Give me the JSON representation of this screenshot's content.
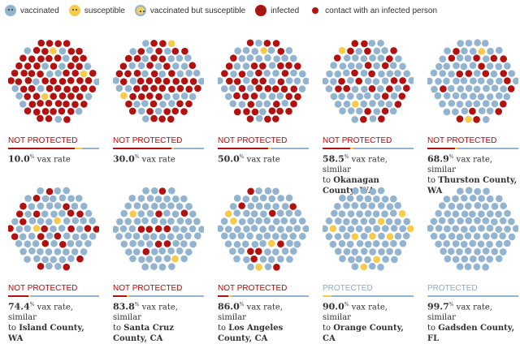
{
  "legend": [
    {
      "label": "vaccinated",
      "color": "#92b4d0"
    },
    {
      "label": "susceptible",
      "color": "#f6cb4c"
    },
    {
      "label": "vaccinated but susceptible",
      "color": "#f0cf6a"
    },
    {
      "label": "infected",
      "color": "#b3110f"
    },
    {
      "label": "contact with an infected person",
      "color": "#b3110f"
    }
  ],
  "colors": {
    "vaccinated": "#92b4d0",
    "susceptible": "#f6cb4c",
    "infected": "#b3110f",
    "not_protected": "#c70000",
    "protected": "#8aaac8"
  },
  "chart_data": {
    "type": "scatter",
    "panels": [
      {
        "status": "NOT PROTECTED",
        "rate": "10.0",
        "suffix": " vax rate",
        "similar": "",
        "infected_share": 0.73,
        "susceptible_share": 0.08
      },
      {
        "status": "NOT PROTECTED",
        "rate": "30.0",
        "suffix": " vax rate",
        "similar": "",
        "infected_share": 0.64,
        "susceptible_share": 0.03
      },
      {
        "status": "NOT PROTECTED",
        "rate": "50.0",
        "suffix": " vax rate",
        "similar": "",
        "infected_share": 0.55,
        "susceptible_share": 0.04
      },
      {
        "status": "NOT PROTECTED",
        "rate": "58.5",
        "suffix": " vax rate, similar",
        "pre": "to ",
        "similar": "Okanagan County, WA",
        "infected_share": 0.3,
        "susceptible_share": 0.04
      },
      {
        "status": "NOT PROTECTED",
        "rate": "68.9",
        "suffix": " vax rate, similar",
        "pre": "to ",
        "similar": "Thurston County, WA",
        "infected_share": 0.3,
        "susceptible_share": 0.03
      },
      {
        "status": "NOT PROTECTED",
        "rate": "74.4",
        "suffix": " vax rate, similar",
        "pre": "to ",
        "similar": "Island County, WA",
        "infected_share": 0.22,
        "susceptible_share": 0.03
      },
      {
        "status": "NOT PROTECTED",
        "rate": "83.8",
        "suffix": " vax rate, similar",
        "pre": "to ",
        "similar": "Santa Cruz County, CA",
        "infected_share": 0.15,
        "susceptible_share": 0.03
      },
      {
        "status": "NOT PROTECTED",
        "rate": "86.0",
        "suffix": " vax rate, similar",
        "pre": "to ",
        "similar": "Los Angeles County, CA",
        "infected_share": 0.12,
        "susceptible_share": 0.03
      },
      {
        "status": "PROTECTED",
        "rate": "90.0",
        "suffix": " vax rate, similar",
        "pre": "to ",
        "similar": "Orange County, CA",
        "infected_share": 0.0,
        "susceptible_share": 0.1
      },
      {
        "status": "PROTECTED",
        "rate": "99.7",
        "suffix": " vax rate, similar",
        "pre": "to ",
        "similar": "Gadsden County, FL",
        "infected_share": 0.0,
        "susceptible_share": 0.01
      }
    ]
  }
}
